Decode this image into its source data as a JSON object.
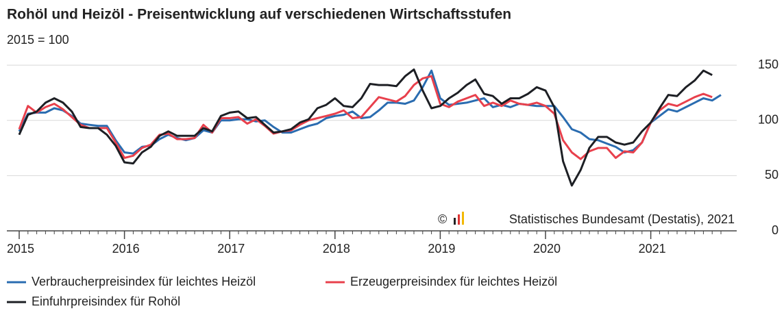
{
  "chart_data": {
    "type": "line",
    "title": "Rohöl und Heizöl - Preisentwicklung auf verschiedenen Wirtschaftsstufen",
    "subtitle": "2015 = 100",
    "source_symbol": "©",
    "source": "Statistisches Bundesamt (Destatis), 2021",
    "x": [
      "2015-01",
      "2015-02",
      "2015-03",
      "2015-04",
      "2015-05",
      "2015-06",
      "2015-07",
      "2015-08",
      "2015-09",
      "2015-10",
      "2015-11",
      "2015-12",
      "2016-01",
      "2016-02",
      "2016-03",
      "2016-04",
      "2016-05",
      "2016-06",
      "2016-07",
      "2016-08",
      "2016-09",
      "2016-10",
      "2016-11",
      "2016-12",
      "2017-01",
      "2017-02",
      "2017-03",
      "2017-04",
      "2017-05",
      "2017-06",
      "2017-07",
      "2017-08",
      "2017-09",
      "2017-10",
      "2017-11",
      "2017-12",
      "2018-01",
      "2018-02",
      "2018-03",
      "2018-04",
      "2018-05",
      "2018-06",
      "2018-07",
      "2018-08",
      "2018-09",
      "2018-10",
      "2018-11",
      "2018-12",
      "2019-01",
      "2019-02",
      "2019-03",
      "2019-04",
      "2019-05",
      "2019-06",
      "2019-07",
      "2019-08",
      "2019-09",
      "2019-10",
      "2019-11",
      "2019-12",
      "2020-01",
      "2020-02",
      "2020-03",
      "2020-04",
      "2020-05",
      "2020-06",
      "2020-07",
      "2020-08",
      "2020-09",
      "2020-10",
      "2020-11",
      "2020-12",
      "2021-01",
      "2021-02",
      "2021-03",
      "2021-04",
      "2021-05",
      "2021-06",
      "2021-07",
      "2021-08",
      "2021-09"
    ],
    "xticks": [
      {
        "value": "2015-01",
        "label": "2015"
      },
      {
        "value": "2016-01",
        "label": "2016"
      },
      {
        "value": "2017-01",
        "label": "2017"
      },
      {
        "value": "2018-01",
        "label": "2018"
      },
      {
        "value": "2019-01",
        "label": "2019"
      },
      {
        "value": "2020-01",
        "label": "2020"
      },
      {
        "value": "2021-01",
        "label": "2021"
      }
    ],
    "ylim": [
      0,
      155
    ],
    "yticks": [
      0,
      50,
      100,
      150
    ],
    "grid": true,
    "series": [
      {
        "name": "Verbraucherpreisindex für leichtes Heizöl",
        "color": "#2a6cb0",
        "values": [
          90,
          106,
          107,
          107,
          111,
          109,
          104,
          97,
          96,
          95,
          95,
          82,
          71,
          70,
          76,
          77,
          83,
          87,
          84,
          82,
          84,
          91,
          89,
          100,
          100,
          101,
          101,
          99,
          100,
          94,
          89,
          89,
          92,
          95,
          97,
          102,
          104,
          105,
          108,
          102,
          103,
          109,
          116,
          116,
          115,
          118,
          130,
          145,
          120,
          114,
          115,
          116,
          118,
          120,
          112,
          114,
          112,
          115,
          114,
          113,
          113,
          113,
          103,
          92,
          89,
          83,
          82,
          79,
          76,
          71,
          73,
          80,
          98,
          104,
          110,
          108,
          112,
          116,
          120,
          118,
          123
        ]
      },
      {
        "name": "Erzeugerpreisindex für leichtes Heizöl",
        "color": "#e8404c",
        "values": [
          92,
          113,
          107,
          112,
          115,
          110,
          103,
          96,
          93,
          93,
          93,
          80,
          66,
          68,
          75,
          78,
          87,
          88,
          83,
          83,
          84,
          96,
          89,
          102,
          102,
          103,
          97,
          101,
          95,
          88,
          90,
          91,
          96,
          100,
          102,
          104,
          106,
          109,
          102,
          103,
          112,
          121,
          119,
          117,
          122,
          132,
          138,
          140,
          115,
          112,
          117,
          120,
          123,
          113,
          116,
          113,
          118,
          115,
          114,
          116,
          113,
          106,
          82,
          71,
          65,
          72,
          75,
          75,
          66,
          72,
          71,
          80,
          98,
          109,
          115,
          113,
          117,
          121,
          124,
          121,
          null
        ]
      },
      {
        "name": "Einfuhrpreisindex für Rohöl",
        "color": "#1d1f24",
        "values": [
          87,
          105,
          108,
          116,
          120,
          116,
          108,
          94,
          93,
          93,
          87,
          77,
          62,
          61,
          71,
          76,
          86,
          90,
          86,
          86,
          86,
          93,
          90,
          104,
          107,
          108,
          102,
          103,
          96,
          89,
          90,
          92,
          98,
          101,
          111,
          114,
          120,
          113,
          112,
          120,
          133,
          132,
          132,
          131,
          140,
          146,
          127,
          111,
          113,
          120,
          125,
          132,
          137,
          124,
          122,
          115,
          120,
          120,
          124,
          130,
          127,
          112,
          63,
          41,
          55,
          75,
          85,
          85,
          80,
          78,
          80,
          90,
          98,
          111,
          123,
          122,
          130,
          136,
          145,
          141,
          null
        ]
      }
    ]
  }
}
